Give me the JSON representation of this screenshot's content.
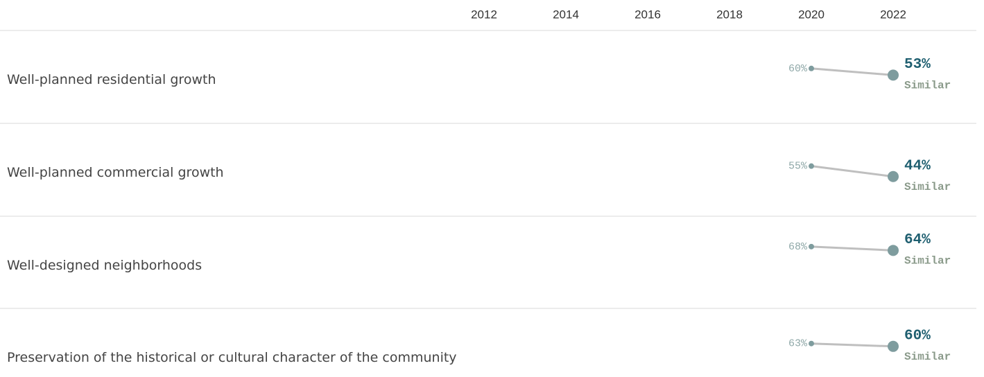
{
  "chart_data": {
    "type": "line",
    "x": [
      2020,
      2022
    ],
    "xlim": [
      2011,
      2023
    ],
    "xticks": [
      2012,
      2014,
      2016,
      2018,
      2020,
      2022
    ],
    "ylim": [
      0,
      100
    ],
    "line_color": "#bfbfbf",
    "point_color": "#7e9c9e",
    "label_color": "#1f5f70",
    "status_color": "#8a9a8a",
    "rows": [
      {
        "name": "Well-planned residential growth",
        "values": [
          60,
          53
        ],
        "value_labels": [
          "60%",
          "53%"
        ],
        "status": "Similar"
      },
      {
        "name": "Well-planned commercial growth",
        "values": [
          55,
          44
        ],
        "value_labels": [
          "55%",
          "44%"
        ],
        "status": "Similar"
      },
      {
        "name": "Well-designed neighborhoods",
        "values": [
          68,
          64
        ],
        "value_labels": [
          "68%",
          "64%"
        ],
        "status": "Similar"
      },
      {
        "name": "Preservation of the historical or cultural character of the community",
        "values": [
          63,
          60
        ],
        "value_labels": [
          "63%",
          "60%"
        ],
        "status": "Similar"
      }
    ]
  }
}
